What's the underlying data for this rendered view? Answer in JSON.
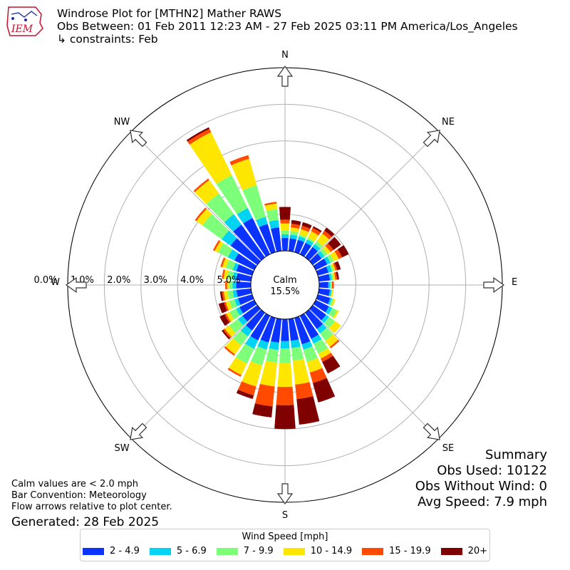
{
  "header": {
    "title": "Windrose Plot for [MTHN2] Mather RAWS",
    "subtitle": "Obs Between: 01 Feb 2011 12:23 AM - 27 Feb 2025 03:11 PM America/Los_Angeles",
    "constraints": "↳ constraints: Feb"
  },
  "logo": {
    "text": "IEM"
  },
  "notes": {
    "calm": "Calm values are < 2.0 mph",
    "convention": "Bar Convention: Meteorology",
    "flow": "Flow arrows relative to plot center.",
    "generated": "Generated: 28 Feb 2025"
  },
  "summary": {
    "title": "Summary",
    "obs_used": "Obs Used: 10122",
    "obs_without_wind": "Obs Without Wind: 0",
    "avg_speed": "Avg Speed: 7.9 mph"
  },
  "chart_data": {
    "type": "windrose",
    "calm_label": "Calm",
    "calm_value": "15.5%",
    "radial_ticks": [
      "0.0%",
      "1.0%",
      "2.0%",
      "3.0%",
      "4.0%",
      "5.0%"
    ],
    "radial_max": 5.0,
    "directions": [
      "N",
      "NE",
      "E",
      "SE",
      "S",
      "SW",
      "W",
      "NW"
    ],
    "legend_title": "Wind Speed [mph]",
    "speed_bins": [
      {
        "name": "2 - 4.9",
        "color": "#0a33ff"
      },
      {
        "name": "5 - 6.9",
        "color": "#00d4f2"
      },
      {
        "name": "7 - 9.9",
        "color": "#7dff7a"
      },
      {
        "name": "10 - 14.9",
        "color": "#ffe600"
      },
      {
        "name": "15 - 19.9",
        "color": "#ff4a00"
      },
      {
        "name": "20+",
        "color": "#800000"
      }
    ],
    "sector_angles": [
      0,
      10,
      20,
      30,
      40,
      50,
      60,
      70,
      80,
      90,
      100,
      110,
      120,
      130,
      140,
      150,
      160,
      170,
      180,
      190,
      200,
      210,
      220,
      230,
      240,
      250,
      260,
      270,
      280,
      290,
      300,
      310,
      320,
      330,
      340,
      350
    ],
    "cumulative_values": [
      [
        0.35,
        0.45,
        0.55,
        0.75,
        0.85,
        1.2
      ],
      [
        0.35,
        0.45,
        0.55,
        0.65,
        0.75,
        0.85
      ],
      [
        0.35,
        0.45,
        0.5,
        0.65,
        0.75,
        0.85
      ],
      [
        0.35,
        0.45,
        0.5,
        0.7,
        0.8,
        0.85
      ],
      [
        0.35,
        0.45,
        0.55,
        0.8,
        0.9,
        1.0
      ],
      [
        0.3,
        0.4,
        0.5,
        0.6,
        0.7,
        0.95
      ],
      [
        0.35,
        0.45,
        0.55,
        0.7,
        0.8,
        1.0
      ],
      [
        0.3,
        0.4,
        0.45,
        0.5,
        0.55,
        0.65
      ],
      [
        0.3,
        0.35,
        0.4,
        0.45,
        0.5,
        0.55
      ],
      [
        0.25,
        0.3,
        0.35,
        0.35,
        0.4,
        0.4
      ],
      [
        0.3,
        0.35,
        0.35,
        0.4,
        0.4,
        0.4
      ],
      [
        0.35,
        0.4,
        0.45,
        0.5,
        0.5,
        0.5
      ],
      [
        0.4,
        0.5,
        0.65,
        0.7,
        0.7,
        0.7
      ],
      [
        0.45,
        0.55,
        0.75,
        0.95,
        0.95,
        0.95
      ],
      [
        0.55,
        0.7,
        0.95,
        1.15,
        1.2,
        1.2
      ],
      [
        0.7,
        0.85,
        1.15,
        1.3,
        1.4,
        1.75
      ],
      [
        0.75,
        0.9,
        1.25,
        1.55,
        1.85,
        2.4
      ],
      [
        0.6,
        0.8,
        1.15,
        1.8,
        2.2,
        2.9
      ],
      [
        0.6,
        0.8,
        1.2,
        1.85,
        2.35,
        3.0
      ],
      [
        0.65,
        0.85,
        1.2,
        1.85,
        2.4,
        2.7
      ],
      [
        0.7,
        0.9,
        1.35,
        1.95,
        2.2,
        2.3
      ],
      [
        0.75,
        1.0,
        1.45,
        1.8,
        1.85,
        1.85
      ],
      [
        0.6,
        0.8,
        1.1,
        1.4,
        1.45,
        1.45
      ],
      [
        0.5,
        0.65,
        0.95,
        1.1,
        1.15,
        1.2
      ],
      [
        0.45,
        0.55,
        0.75,
        0.85,
        0.9,
        1.05
      ],
      [
        0.4,
        0.5,
        0.65,
        0.75,
        0.8,
        0.95
      ],
      [
        0.4,
        0.5,
        0.65,
        0.75,
        0.8,
        0.85
      ],
      [
        0.4,
        0.5,
        0.6,
        0.65,
        0.7,
        0.7
      ],
      [
        0.4,
        0.5,
        0.65,
        0.75,
        0.8,
        0.8
      ],
      [
        0.45,
        0.55,
        0.75,
        0.85,
        0.9,
        0.9
      ],
      [
        0.6,
        0.8,
        1.1,
        1.2,
        1.25,
        1.25
      ],
      [
        0.9,
        1.2,
        1.85,
        2.05,
        2.1,
        2.1
      ],
      [
        1.1,
        1.45,
        2.15,
        2.6,
        2.65,
        2.65
      ],
      [
        1.1,
        1.4,
        2.4,
        3.7,
        3.8,
        3.85
      ],
      [
        0.8,
        1.0,
        1.9,
        2.65,
        2.75,
        2.75
      ],
      [
        0.65,
        0.85,
        1.15,
        1.3,
        1.35,
        1.35
      ]
    ]
  }
}
